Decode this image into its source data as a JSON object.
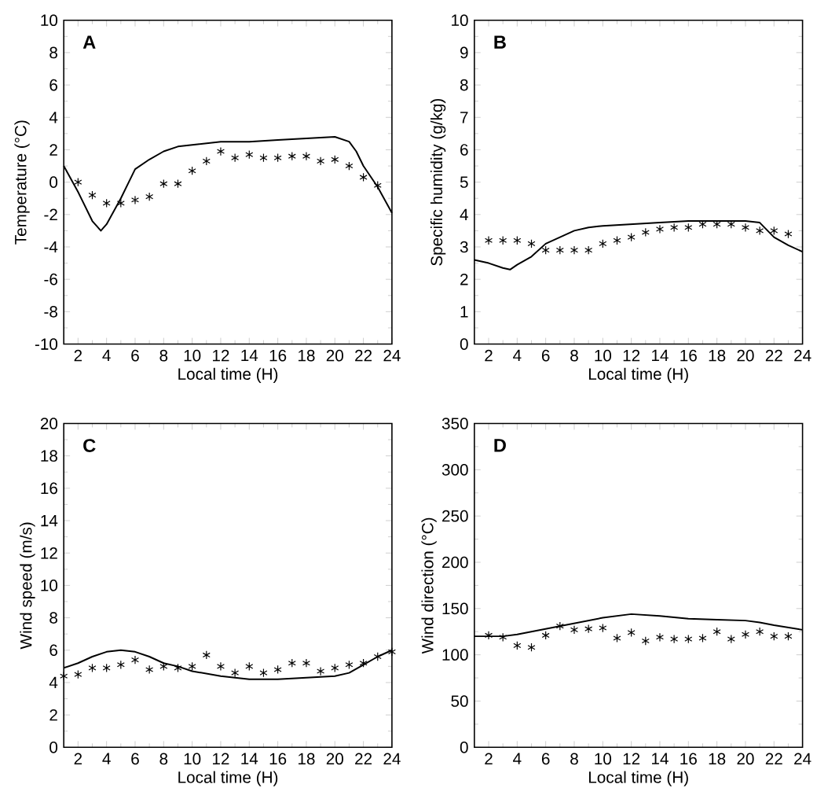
{
  "chart_data": [
    {
      "type": "line",
      "title": "A",
      "xlabel": "Local time (H)",
      "ylabel": "Temperature (°C)",
      "xlim": [
        1,
        24
      ],
      "xticks": [
        2,
        4,
        6,
        8,
        10,
        12,
        14,
        16,
        18,
        20,
        22,
        24
      ],
      "ylim": [
        -10,
        10
      ],
      "yticks": [
        -10,
        -8,
        -6,
        -4,
        -2,
        0,
        2,
        4,
        6,
        8,
        10
      ],
      "series": [
        {
          "type": "line",
          "color": "#000000",
          "marker": "none",
          "x": [
            1,
            2,
            3,
            3.6,
            4,
            5,
            6,
            7,
            8,
            9,
            10,
            12,
            14,
            16,
            18,
            20,
            21,
            21.5,
            22,
            23,
            24
          ],
          "values": [
            1.0,
            -0.6,
            -2.4,
            -3.0,
            -2.6,
            -1.0,
            0.8,
            1.4,
            1.9,
            2.2,
            2.3,
            2.5,
            2.5,
            2.6,
            2.7,
            2.8,
            2.5,
            1.9,
            1.0,
            -0.3,
            -1.9
          ]
        },
        {
          "type": "scatter",
          "color": "#000000",
          "marker": "cross",
          "x": [
            2,
            3,
            4,
            5,
            6,
            7,
            8,
            9,
            10,
            11,
            12,
            13,
            14,
            15,
            16,
            17,
            18,
            19,
            20,
            21,
            22,
            23
          ],
          "values": [
            0.0,
            -0.8,
            -1.3,
            -1.3,
            -1.1,
            -0.9,
            -0.1,
            -0.1,
            0.7,
            1.3,
            1.9,
            1.5,
            1.7,
            1.5,
            1.5,
            1.6,
            1.6,
            1.3,
            1.4,
            1.0,
            0.3,
            -0.2
          ]
        }
      ]
    },
    {
      "type": "line",
      "title": "B",
      "xlabel": "Local time (H)",
      "ylabel": "Specific humidity (g/kg)",
      "xlim": [
        1,
        24
      ],
      "xticks": [
        2,
        4,
        6,
        8,
        10,
        12,
        14,
        16,
        18,
        20,
        22,
        24
      ],
      "ylim": [
        0,
        10
      ],
      "yticks": [
        0,
        1,
        2,
        3,
        4,
        5,
        6,
        7,
        8,
        9,
        10
      ],
      "series": [
        {
          "type": "line",
          "color": "#000000",
          "marker": "none",
          "x": [
            1,
            2,
            3,
            3.5,
            4,
            5,
            6,
            7,
            8,
            9,
            10,
            12,
            14,
            16,
            18,
            20,
            21,
            22,
            23,
            24
          ],
          "values": [
            2.6,
            2.5,
            2.35,
            2.3,
            2.45,
            2.7,
            3.1,
            3.3,
            3.5,
            3.6,
            3.65,
            3.7,
            3.75,
            3.8,
            3.8,
            3.8,
            3.75,
            3.3,
            3.05,
            2.85
          ]
        },
        {
          "type": "scatter",
          "color": "#000000",
          "marker": "cross",
          "x": [
            2,
            3,
            4,
            5,
            6,
            7,
            8,
            9,
            10,
            11,
            12,
            13,
            14,
            15,
            16,
            17,
            18,
            19,
            20,
            21,
            22,
            23
          ],
          "values": [
            3.2,
            3.2,
            3.2,
            3.1,
            2.9,
            2.9,
            2.9,
            2.9,
            3.1,
            3.2,
            3.3,
            3.45,
            3.55,
            3.6,
            3.6,
            3.7,
            3.7,
            3.7,
            3.6,
            3.5,
            3.5,
            3.4
          ]
        }
      ]
    },
    {
      "type": "line",
      "title": "C",
      "xlabel": "Local time (H)",
      "ylabel": "Wind speed (m/s)",
      "xlim": [
        1,
        24
      ],
      "xticks": [
        2,
        4,
        6,
        8,
        10,
        12,
        14,
        16,
        18,
        20,
        22,
        24
      ],
      "ylim": [
        0,
        20
      ],
      "yticks": [
        0,
        2,
        4,
        6,
        8,
        10,
        12,
        14,
        16,
        18,
        20
      ],
      "series": [
        {
          "type": "line",
          "color": "#000000",
          "marker": "none",
          "x": [
            1,
            2,
            3,
            4,
            5,
            6,
            7,
            8,
            9,
            10,
            12,
            14,
            16,
            18,
            20,
            21,
            22,
            23,
            24
          ],
          "values": [
            4.9,
            5.2,
            5.6,
            5.9,
            6.0,
            5.9,
            5.6,
            5.2,
            5.0,
            4.7,
            4.4,
            4.2,
            4.2,
            4.3,
            4.4,
            4.6,
            5.1,
            5.6,
            6.0
          ]
        },
        {
          "type": "scatter",
          "color": "#000000",
          "marker": "cross",
          "x": [
            1,
            2,
            3,
            4,
            5,
            6,
            7,
            8,
            9,
            10,
            11,
            12,
            13,
            14,
            15,
            16,
            17,
            18,
            19,
            20,
            21,
            22,
            23,
            24
          ],
          "values": [
            4.4,
            4.5,
            4.9,
            4.9,
            5.1,
            5.4,
            4.8,
            5.0,
            4.9,
            5.0,
            5.7,
            5.0,
            4.6,
            5.0,
            4.6,
            4.8,
            5.2,
            5.2,
            4.7,
            4.9,
            5.1,
            5.2,
            5.6,
            5.9
          ]
        }
      ]
    },
    {
      "type": "line",
      "title": "D",
      "xlabel": "Local time (H)",
      "ylabel": "Wind direction (°C)",
      "xlim": [
        1,
        24
      ],
      "xticks": [
        2,
        4,
        6,
        8,
        10,
        12,
        14,
        16,
        18,
        20,
        22,
        24
      ],
      "ylim": [
        0,
        350
      ],
      "yticks": [
        0,
        50,
        100,
        150,
        200,
        250,
        300,
        350
      ],
      "series": [
        {
          "type": "line",
          "color": "#000000",
          "marker": "none",
          "x": [
            1,
            3,
            4,
            6,
            8,
            10,
            12,
            14,
            16,
            18,
            20,
            21,
            22,
            24
          ],
          "values": [
            120,
            120,
            122,
            128,
            134,
            140,
            144,
            142,
            139,
            138,
            137,
            135,
            132,
            127
          ]
        },
        {
          "type": "scatter",
          "color": "#000000",
          "marker": "cross",
          "x": [
            2,
            3,
            4,
            5,
            6,
            7,
            8,
            9,
            10,
            11,
            12,
            13,
            14,
            15,
            16,
            17,
            18,
            19,
            20,
            21,
            22,
            23
          ],
          "values": [
            121,
            119,
            110,
            108,
            121,
            131,
            127,
            128,
            129,
            118,
            124,
            115,
            119,
            117,
            117,
            118,
            125,
            117,
            122,
            125,
            120,
            120
          ]
        }
      ]
    }
  ]
}
